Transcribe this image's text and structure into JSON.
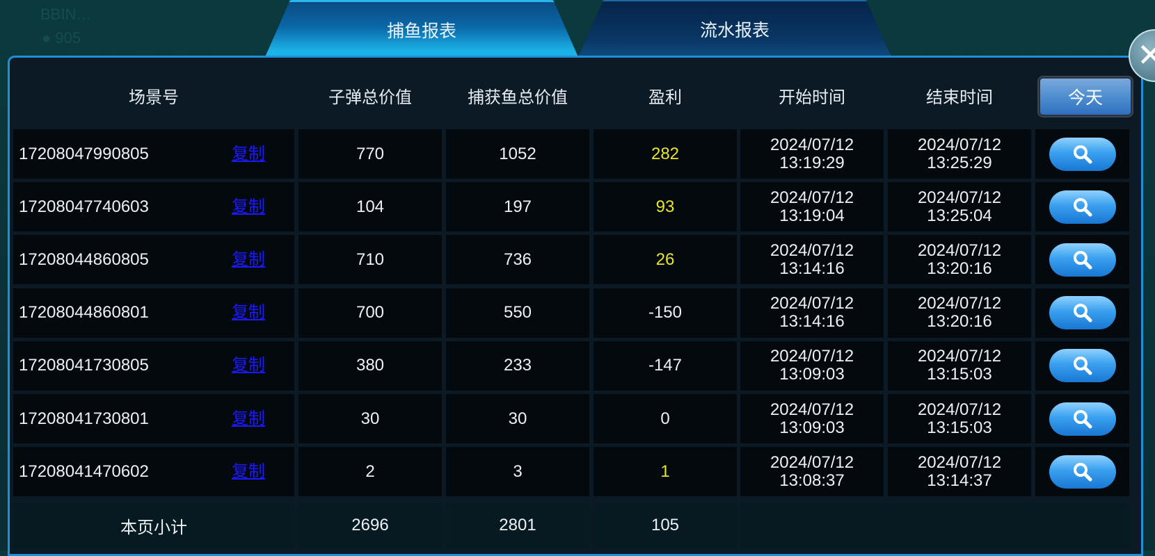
{
  "tabs": [
    {
      "label": "捕鱼报表",
      "active": true
    },
    {
      "label": "流水报表",
      "active": false
    }
  ],
  "headers": [
    "场景号",
    "子弹总价值",
    "捕获鱼总价值",
    "盈利",
    "开始时间",
    "结束时间"
  ],
  "today_label": "今天",
  "copy_label": "复制",
  "rows": [
    {
      "id": "17208047990805",
      "bullet": "770",
      "catch": "1052",
      "profit": "282",
      "start_date": "2024/07/12",
      "start_time": "13:19:29",
      "end_date": "2024/07/12",
      "end_time": "13:25:29"
    },
    {
      "id": "17208047740603",
      "bullet": "104",
      "catch": "197",
      "profit": "93",
      "start_date": "2024/07/12",
      "start_time": "13:19:04",
      "end_date": "2024/07/12",
      "end_time": "13:25:04"
    },
    {
      "id": "17208044860805",
      "bullet": "710",
      "catch": "736",
      "profit": "26",
      "start_date": "2024/07/12",
      "start_time": "13:14:16",
      "end_date": "2024/07/12",
      "end_time": "13:20:16"
    },
    {
      "id": "17208044860801",
      "bullet": "700",
      "catch": "550",
      "profit": "-150",
      "start_date": "2024/07/12",
      "start_time": "13:14:16",
      "end_date": "2024/07/12",
      "end_time": "13:20:16"
    },
    {
      "id": "17208041730805",
      "bullet": "380",
      "catch": "233",
      "profit": "-147",
      "start_date": "2024/07/12",
      "start_time": "13:09:03",
      "end_date": "2024/07/12",
      "end_time": "13:15:03"
    },
    {
      "id": "17208041730801",
      "bullet": "30",
      "catch": "30",
      "profit": "0",
      "start_date": "2024/07/12",
      "start_time": "13:09:03",
      "end_date": "2024/07/12",
      "end_time": "13:15:03"
    },
    {
      "id": "17208041470602",
      "bullet": "2",
      "catch": "3",
      "profit": "1",
      "start_date": "2024/07/12",
      "start_time": "13:08:37",
      "end_date": "2024/07/12",
      "end_time": "13:14:37"
    }
  ],
  "subtotal": {
    "label": "本页小计",
    "bullet": "2696",
    "catch": "2801",
    "profit": "105"
  },
  "colors": {
    "positive_profit": "#e7e62a",
    "copy_link": "#1a1aff",
    "accent": "#1f8fd8"
  }
}
